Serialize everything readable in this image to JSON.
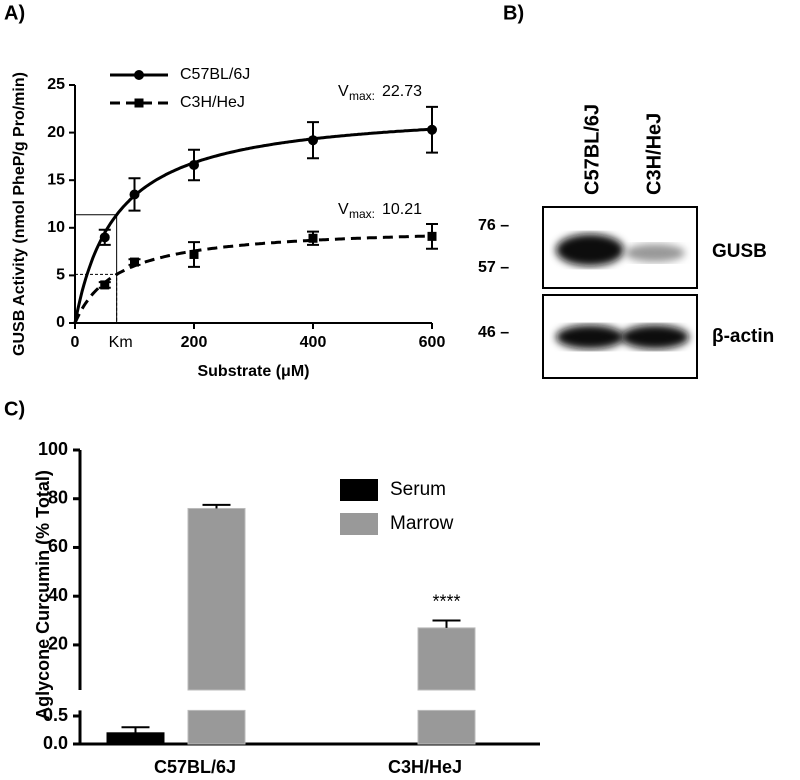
{
  "panels": {
    "a": "A)",
    "b": "B)",
    "c": "C)"
  },
  "chart_data": [
    {
      "type": "line",
      "y_label": "GUSB Activity (nmol PheP/g Pro/min)",
      "x_label": "Substrate (μM)",
      "xlim": [
        0,
        600
      ],
      "xticks": [
        0,
        200,
        400,
        600
      ],
      "ylim": [
        0,
        25
      ],
      "yticks": [
        0,
        5,
        10,
        15,
        20,
        25
      ],
      "km": {
        "label": "Km",
        "value": 70
      },
      "x": [
        50,
        100,
        200,
        400,
        600
      ],
      "series": [
        {
          "name": "C57BL/6J",
          "color": "#000000",
          "marker": "circle",
          "dashed": false,
          "values": [
            9,
            13.5,
            16.6,
            19.2,
            20.3
          ],
          "errors": [
            0.8,
            1.7,
            1.6,
            1.9,
            2.4
          ],
          "vmax": {
            "symbol": "V",
            "sub": "max:",
            "value": 22.73
          }
        },
        {
          "name": "C3H/HeJ",
          "color": "#000000",
          "marker": "square",
          "dashed": true,
          "values": [
            4.0,
            6.4,
            7.2,
            8.9,
            9.1
          ],
          "errors": [
            0.3,
            0.3,
            1.3,
            0.7,
            1.3
          ],
          "vmax": {
            "symbol": "V",
            "sub": "max:",
            "value": 10.21
          }
        }
      ]
    },
    {
      "type": "bar",
      "y_label": "Aglycone Curcumin (% Total)",
      "categories": [
        "C57BL/6J",
        "C3H/HeJ"
      ],
      "y_segments": [
        {
          "ylim": [
            0,
            0.6
          ],
          "yticks": [
            {
              "value": 0,
              "label": "0.0"
            },
            0.5
          ]
        },
        {
          "ylim": [
            1.5,
            100
          ],
          "yticks": [
            20,
            40,
            60,
            80,
            100
          ]
        }
      ],
      "series": [
        {
          "name": "Serum",
          "color": "#000000",
          "values": [
            0.2,
            0.005
          ],
          "errors": [
            0.1,
            0
          ]
        },
        {
          "name": "Marrow",
          "color": "#999999",
          "values": [
            76,
            27
          ],
          "errors": [
            1.5,
            3
          ]
        }
      ],
      "annotations": [
        {
          "text": "****",
          "category": 1,
          "series": 1
        }
      ]
    }
  ],
  "blot": {
    "lanes": [
      "C57BL/6J",
      "C3H/HeJ"
    ],
    "markers": [
      "76 –",
      "57 –",
      "46 –"
    ],
    "bands": [
      "GUSB",
      "β-actin"
    ]
  }
}
